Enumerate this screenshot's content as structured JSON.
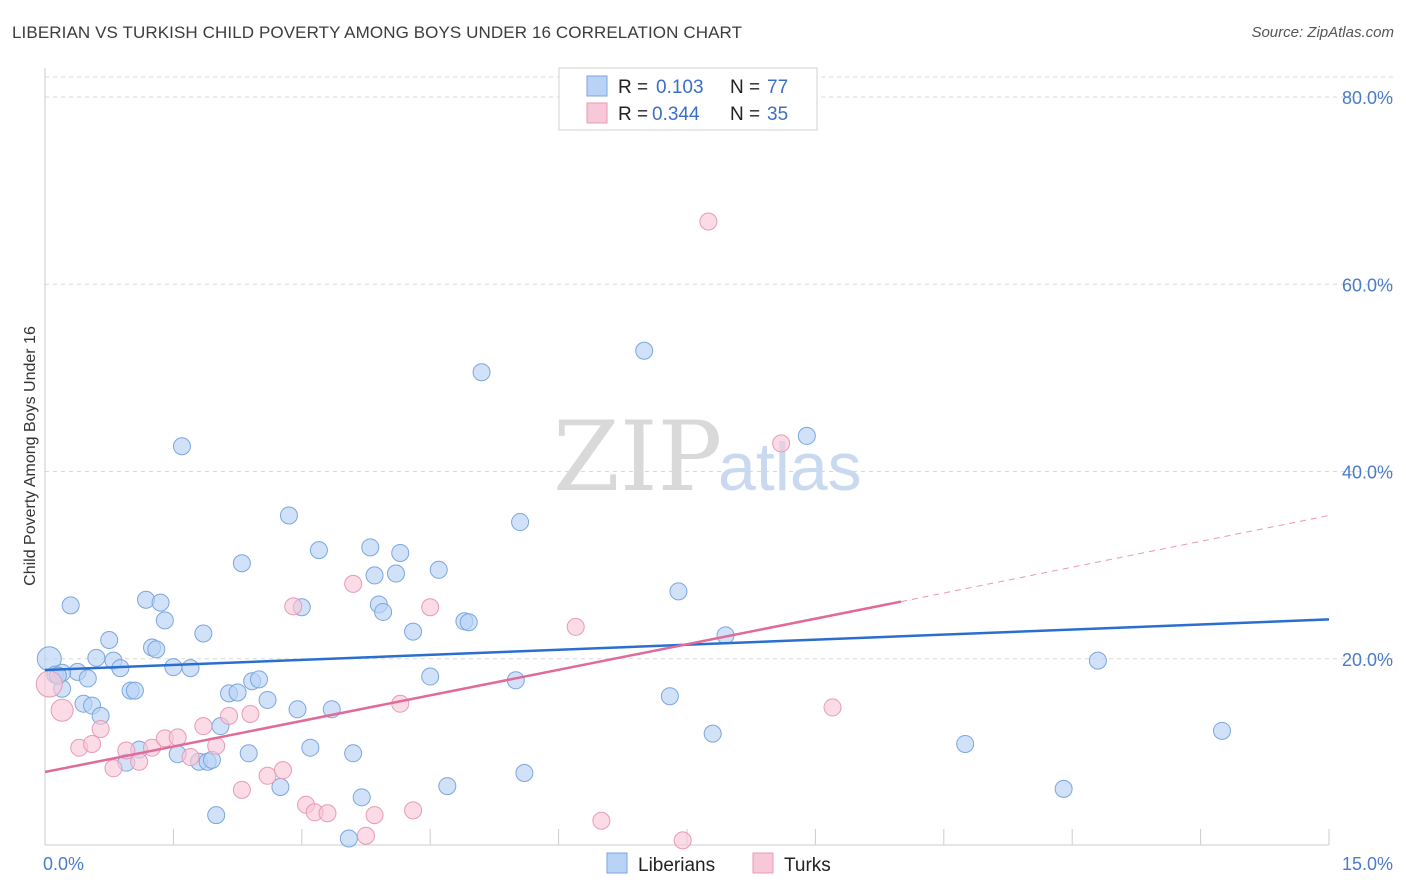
{
  "title": "LIBERIAN VS TURKISH CHILD POVERTY AMONG BOYS UNDER 16 CORRELATION CHART",
  "source": "Source: ZipAtlas.com",
  "watermark": {
    "zip": "ZIP",
    "atlas": "atlas"
  },
  "colors": {
    "liberians_fill": "#b8d3f5",
    "liberians_stroke": "#7aa6e0",
    "liberians_line": "#2a6fd0",
    "turks_fill": "#f7c8d8",
    "turks_stroke": "#e99ab5",
    "turks_line": "#e06a98",
    "grid": "#d8d8d8"
  },
  "legend": {
    "rows": [
      {
        "r_label": "R = ",
        "r_value": "0.103",
        "n_label": "N = ",
        "n_value": "77"
      },
      {
        "r_label": "R = ",
        "r_value": "0.344",
        "n_label": "N = ",
        "n_value": "35"
      }
    ]
  },
  "bottom_legend": [
    "Liberians",
    "Turks"
  ],
  "chart_data": {
    "type": "scatter",
    "title": "LIBERIAN VS TURKISH CHILD POVERTY AMONG BOYS UNDER 16 CORRELATION CHART",
    "xlabel": "",
    "ylabel": "Child Poverty Among Boys Under 16",
    "xlim": [
      0,
      15
    ],
    "ylim": [
      0,
      82
    ],
    "x_tick_labels": [
      "0.0%",
      "15.0%"
    ],
    "y_ticks": [
      20,
      40,
      60,
      80
    ],
    "y_tick_labels": [
      "20.0%",
      "40.0%",
      "60.0%",
      "80.0%"
    ],
    "grid": true,
    "legend_position": "top-center",
    "series": [
      {
        "name": "Liberians",
        "trend": {
          "x": [
            0,
            15
          ],
          "y": [
            18.8,
            24.2
          ]
        },
        "points": [
          [
            0.05,
            20.0
          ],
          [
            0.12,
            18.3
          ],
          [
            0.2,
            16.8
          ],
          [
            0.3,
            25.7
          ],
          [
            0.38,
            18.6
          ],
          [
            0.45,
            15.2
          ],
          [
            0.5,
            17.9
          ],
          [
            0.55,
            15.0
          ],
          [
            0.6,
            20.1
          ],
          [
            0.65,
            13.9
          ],
          [
            0.75,
            22.0
          ],
          [
            0.8,
            19.8
          ],
          [
            0.88,
            19.0
          ],
          [
            0.95,
            8.9
          ],
          [
            1.0,
            16.6
          ],
          [
            1.05,
            16.6
          ],
          [
            1.1,
            10.3
          ],
          [
            1.18,
            26.3
          ],
          [
            1.25,
            21.2
          ],
          [
            1.3,
            21.0
          ],
          [
            1.35,
            26.0
          ],
          [
            1.4,
            24.1
          ],
          [
            1.5,
            19.1
          ],
          [
            1.55,
            9.8
          ],
          [
            1.6,
            42.7
          ],
          [
            1.7,
            19.0
          ],
          [
            1.8,
            9.0
          ],
          [
            1.85,
            22.7
          ],
          [
            1.9,
            9.0
          ],
          [
            2.0,
            3.3
          ],
          [
            2.05,
            12.8
          ],
          [
            2.15,
            16.3
          ],
          [
            2.25,
            16.4
          ],
          [
            2.3,
            30.2
          ],
          [
            2.38,
            9.9
          ],
          [
            2.42,
            17.6
          ],
          [
            2.5,
            17.8
          ],
          [
            2.6,
            15.6
          ],
          [
            2.75,
            6.3
          ],
          [
            2.85,
            35.3
          ],
          [
            2.95,
            14.6
          ],
          [
            3.0,
            25.5
          ],
          [
            3.1,
            10.5
          ],
          [
            3.2,
            31.6
          ],
          [
            3.35,
            14.6
          ],
          [
            3.55,
            0.8
          ],
          [
            3.6,
            9.9
          ],
          [
            3.7,
            5.2
          ],
          [
            3.8,
            31.9
          ],
          [
            3.85,
            28.9
          ],
          [
            3.9,
            25.8
          ],
          [
            3.95,
            25.0
          ],
          [
            4.1,
            29.1
          ],
          [
            4.15,
            31.3
          ],
          [
            4.3,
            22.9
          ],
          [
            4.5,
            18.1
          ],
          [
            4.6,
            29.5
          ],
          [
            4.7,
            6.4
          ],
          [
            4.9,
            24.0
          ],
          [
            4.95,
            23.9
          ],
          [
            5.1,
            50.6
          ],
          [
            5.5,
            17.7
          ],
          [
            5.55,
            34.6
          ],
          [
            5.6,
            7.8
          ],
          [
            7.0,
            52.9
          ],
          [
            7.3,
            16.0
          ],
          [
            7.4,
            27.2
          ],
          [
            7.8,
            12.0
          ],
          [
            7.95,
            22.5
          ],
          [
            8.9,
            43.8
          ],
          [
            10.75,
            10.9
          ],
          [
            11.9,
            6.1
          ],
          [
            12.3,
            19.8
          ],
          [
            13.75,
            12.3
          ],
          [
            0.2,
            18.5
          ],
          [
            1.95,
            9.2
          ],
          [
            0.15,
            18.2
          ]
        ]
      },
      {
        "name": "Turks",
        "trend": {
          "x": [
            0,
            10.0
          ],
          "y": [
            7.9,
            26.1
          ]
        },
        "trend_dashed": {
          "x": [
            10.0,
            15
          ],
          "y": [
            26.1,
            35.3
          ]
        },
        "points": [
          [
            0.05,
            17.3
          ],
          [
            0.2,
            14.5
          ],
          [
            0.4,
            10.5
          ],
          [
            0.55,
            10.9
          ],
          [
            0.65,
            12.5
          ],
          [
            0.8,
            8.3
          ],
          [
            0.95,
            10.2
          ],
          [
            1.1,
            9.0
          ],
          [
            1.25,
            10.5
          ],
          [
            1.4,
            11.5
          ],
          [
            1.55,
            11.6
          ],
          [
            1.7,
            9.5
          ],
          [
            1.85,
            12.8
          ],
          [
            2.0,
            10.7
          ],
          [
            2.15,
            13.9
          ],
          [
            2.3,
            6.0
          ],
          [
            2.4,
            14.1
          ],
          [
            2.6,
            7.5
          ],
          [
            2.78,
            8.1
          ],
          [
            2.9,
            25.6
          ],
          [
            3.05,
            4.4
          ],
          [
            3.15,
            3.6
          ],
          [
            3.3,
            3.5
          ],
          [
            3.6,
            28.0
          ],
          [
            3.75,
            1.1
          ],
          [
            3.85,
            3.3
          ],
          [
            4.15,
            15.2
          ],
          [
            4.3,
            3.8
          ],
          [
            4.5,
            25.5
          ],
          [
            6.2,
            23.4
          ],
          [
            6.5,
            2.7
          ],
          [
            7.45,
            0.6
          ],
          [
            7.75,
            66.7
          ],
          [
            8.6,
            43.0
          ],
          [
            9.2,
            14.8
          ]
        ]
      }
    ]
  }
}
